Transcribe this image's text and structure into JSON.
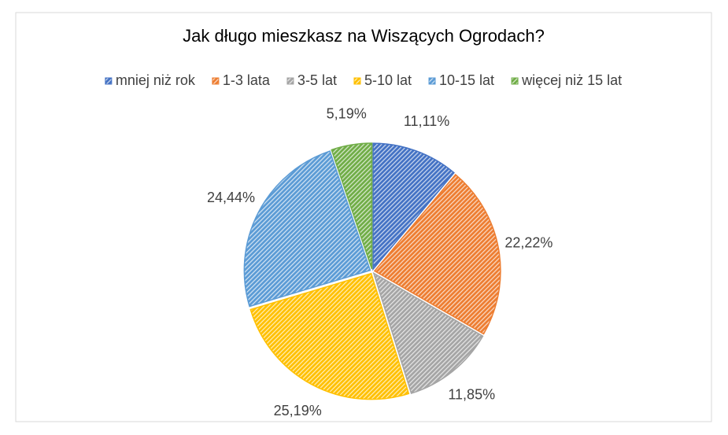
{
  "chart_data": {
    "type": "pie",
    "title": "Jak długo mieszkasz na Wiszących Ogrodach?",
    "categories": [
      "mniej niż rok",
      "1-3 lata",
      "3-5 lat",
      "5-10 lat",
      "10-15 lat",
      "więcej niż 15 lat"
    ],
    "values": [
      11.11,
      22.22,
      11.85,
      25.19,
      24.44,
      5.19
    ],
    "value_labels": [
      "11,11%",
      "22,22%",
      "11,85%",
      "25,19%",
      "24,44%",
      "5,19%"
    ],
    "colors": [
      "#4472c4",
      "#ed7d31",
      "#a5a5a5",
      "#ffc000",
      "#5b9bd5",
      "#70ad47"
    ],
    "legend": "top"
  }
}
